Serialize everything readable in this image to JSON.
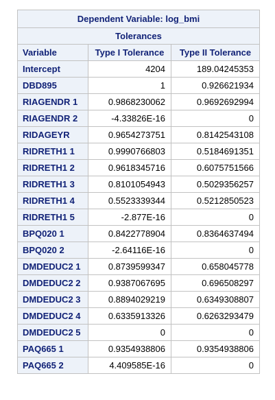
{
  "table": {
    "title": "Dependent Variable: log_bmi",
    "subtitle": "Tolerances",
    "columns": [
      "Variable",
      "Type I Tolerance",
      "Type II Tolerance"
    ],
    "rows": [
      {
        "variable": "Intercept",
        "type1": "4204",
        "type2": "189.04245353"
      },
      {
        "variable": "DBD895",
        "type1": "1",
        "type2": "0.926621934"
      },
      {
        "variable": "RIAGENDR 1",
        "type1": "0.9868230062",
        "type2": "0.9692692994"
      },
      {
        "variable": "RIAGENDR 2",
        "type1": "-4.33826E-16",
        "type2": "0"
      },
      {
        "variable": "RIDAGEYR",
        "type1": "0.9654273751",
        "type2": "0.8142543108"
      },
      {
        "variable": "RIDRETH1 1",
        "type1": "0.9990766803",
        "type2": "0.5184691351"
      },
      {
        "variable": "RIDRETH1 2",
        "type1": "0.9618345716",
        "type2": "0.6075751566"
      },
      {
        "variable": "RIDRETH1 3",
        "type1": "0.8101054943",
        "type2": "0.5029356257"
      },
      {
        "variable": "RIDRETH1 4",
        "type1": "0.5523339344",
        "type2": "0.5212850523"
      },
      {
        "variable": "RIDRETH1 5",
        "type1": "-2.877E-16",
        "type2": "0"
      },
      {
        "variable": "BPQ020 1",
        "type1": "0.8422778904",
        "type2": "0.8364637494"
      },
      {
        "variable": "BPQ020 2",
        "type1": "-2.64116E-16",
        "type2": "0"
      },
      {
        "variable": "DMDEDUC2 1",
        "type1": "0.8739599347",
        "type2": "0.658045778"
      },
      {
        "variable": "DMDEDUC2 2",
        "type1": "0.9387067695",
        "type2": "0.696508297"
      },
      {
        "variable": "DMDEDUC2 3",
        "type1": "0.8894029219",
        "type2": "0.6349308807"
      },
      {
        "variable": "DMDEDUC2 4",
        "type1": "0.6335913326",
        "type2": "0.6263293479"
      },
      {
        "variable": "DMDEDUC2 5",
        "type1": "0",
        "type2": "0"
      },
      {
        "variable": "PAQ665 1",
        "type1": "0.9354938806",
        "type2": "0.9354938806"
      },
      {
        "variable": "PAQ665 2",
        "type1": "4.409585E-16",
        "type2": "0"
      }
    ]
  },
  "colors": {
    "header_bg": "#edf2f9",
    "header_text": "#112277",
    "border": "#c1c1c1",
    "cell_bg": "#ffffff"
  }
}
